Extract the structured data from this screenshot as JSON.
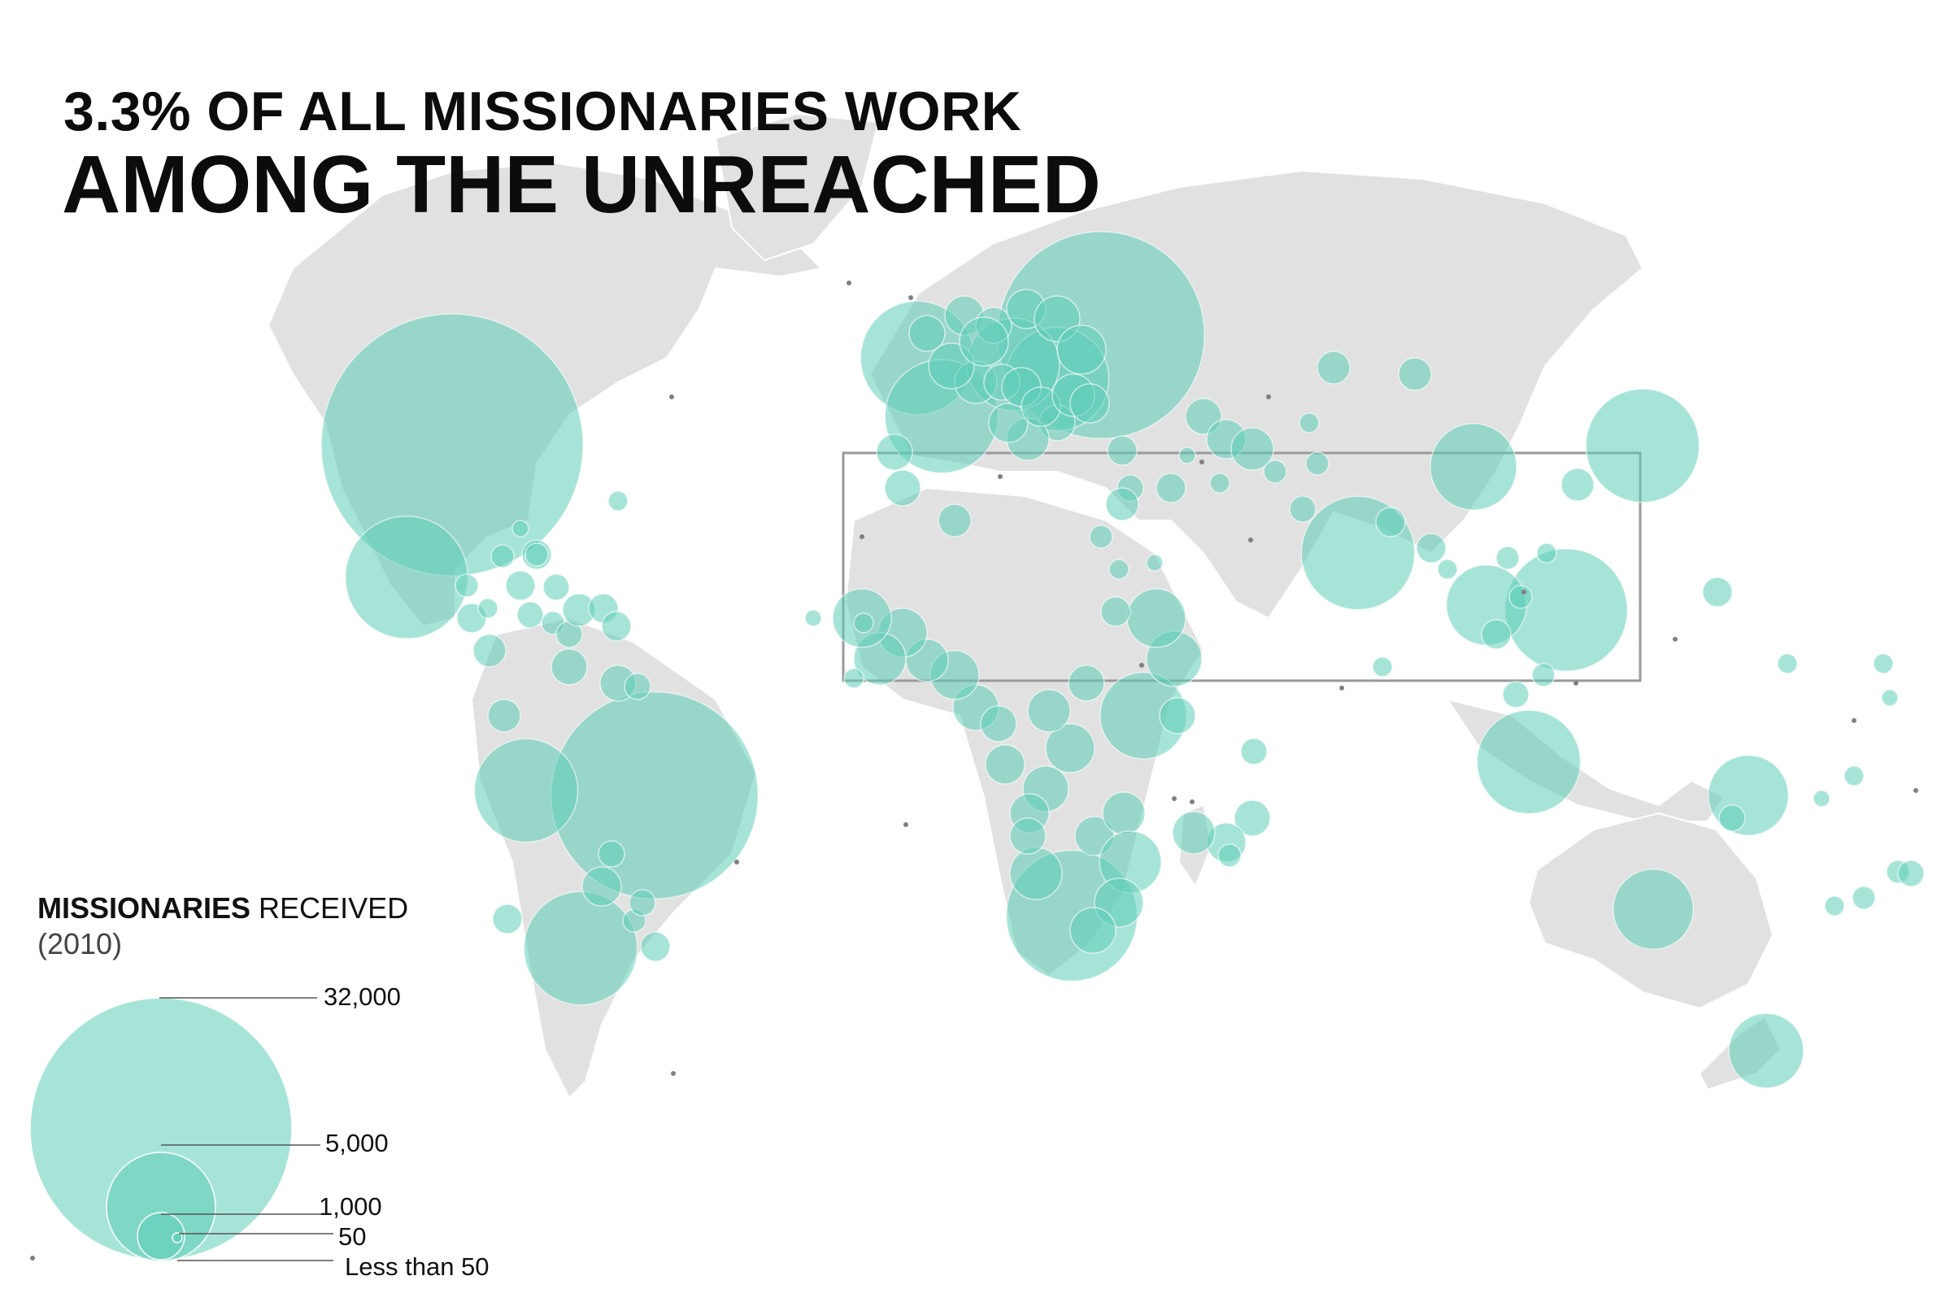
{
  "title": {
    "line1": "3.3% OF ALL MISSIONARIES WORK",
    "line2": "AMONG THE UNREACHED"
  },
  "legend": {
    "title_bold": "MISSIONARIES",
    "title_rest": " RECEIVED",
    "year": "(2010)",
    "levels": [
      {
        "label": "32,000",
        "value": 32000
      },
      {
        "label": "5,000",
        "value": 5000
      },
      {
        "label": "1,000",
        "value": 1000
      },
      {
        "label": "50",
        "value": 50
      },
      {
        "label": "Less than 50",
        "value": 0
      }
    ]
  },
  "map": {
    "highlight_box": "10/40 window",
    "colors": {
      "bubble": "#5fcdb8",
      "land": "#e1e1e1",
      "tiny_dot": "#808080",
      "box": "#9a9a9a"
    }
  },
  "chart_data": {
    "type": "bubble-map",
    "metric": "Missionaries received (2010)",
    "regions": [
      {
        "name": "United States",
        "value": 32000
      },
      {
        "name": "Brazil",
        "value": 20000
      },
      {
        "name": "Russia",
        "value": 20000
      },
      {
        "name": "South Africa",
        "value": 8000
      },
      {
        "name": "Mexico",
        "value": 7000
      },
      {
        "name": "Philippines",
        "value": 7000
      },
      {
        "name": "United Kingdom",
        "value": 6000
      },
      {
        "name": "India",
        "value": 6000
      },
      {
        "name": "Argentina",
        "value": 6000
      },
      {
        "name": "Peru",
        "value": 5000
      },
      {
        "name": "Japan",
        "value": 6000
      },
      {
        "name": "Indonesia",
        "value": 5000
      },
      {
        "name": "Ukraine",
        "value": 5000
      },
      {
        "name": "France",
        "value": 6000
      },
      {
        "name": "Germany",
        "value": 4000
      },
      {
        "name": "China",
        "value": 3500
      },
      {
        "name": "Kenya",
        "value": 3500
      },
      {
        "name": "Papua New Guinea",
        "value": 3000
      },
      {
        "name": "Australia",
        "value": 3000
      },
      {
        "name": "New Zealand",
        "value": 2600
      },
      {
        "name": "Thailand",
        "value": 3000
      }
    ]
  }
}
